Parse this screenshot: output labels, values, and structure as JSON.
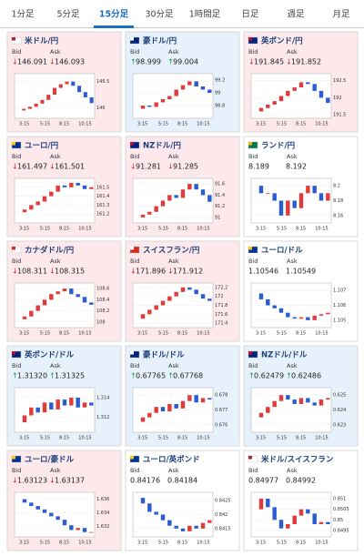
{
  "tabs": [
    "1分足",
    "5分足",
    "15分足",
    "30分足",
    "1時間足",
    "日足",
    "週足",
    "月足"
  ],
  "active_tab": 2,
  "labels": {
    "bid": "Bid",
    "ask": "Ask"
  },
  "chart_xlabels": [
    "3:15",
    "5:15",
    "8:15",
    "10:15"
  ],
  "cards": [
    {
      "name": "米ドル/円",
      "direction": "down",
      "bid": "146.091",
      "ask": "146.093",
      "ylim": [
        145.8,
        146.65
      ],
      "yticks": [
        146.5,
        146
      ],
      "values": [
        145.95,
        145.98,
        146.02,
        146.08,
        146.15,
        146.25,
        146.38,
        146.45,
        146.5,
        146.42,
        146.3,
        146.2,
        146.09
      ]
    },
    {
      "name": "豪ドル/円",
      "direction": "up",
      "bid": "98.999",
      "ask": "99.004",
      "ylim": [
        98.6,
        99.3
      ],
      "yticks": [
        99.2,
        99,
        98.8
      ],
      "values": [
        98.75,
        98.8,
        98.78,
        98.85,
        98.9,
        98.95,
        99.05,
        99.12,
        99.18,
        99.1,
        99.05,
        99.0
      ]
    },
    {
      "name": "英ポンド/円",
      "direction": "down",
      "bid": "191.845",
      "ask": "191.852",
      "ylim": [
        191.4,
        192.7
      ],
      "yticks": [
        192.5,
        192,
        191.5
      ],
      "values": [
        191.6,
        191.7,
        191.8,
        191.9,
        192.05,
        192.2,
        192.3,
        192.45,
        192.4,
        192.2,
        192.0,
        191.85
      ]
    },
    {
      "name": "ユーロ/円",
      "direction": "down",
      "bid": "161.497",
      "ask": "161.501",
      "ylim": [
        161.1,
        161.6
      ],
      "yticks": [
        161.5,
        161.4,
        161.3,
        161.2
      ],
      "values": [
        161.22,
        161.25,
        161.3,
        161.34,
        161.4,
        161.45,
        161.52,
        161.5,
        161.55,
        161.52,
        161.48,
        161.5
      ]
    },
    {
      "name": "NZドル/円",
      "direction": "down",
      "bid": "91.281",
      "ask": "91.285",
      "ylim": [
        90.9,
        91.7
      ],
      "yticks": [
        91.6,
        91.4,
        91.2,
        91
      ],
      "values": [
        91.0,
        91.05,
        91.1,
        91.2,
        91.3,
        91.4,
        91.35,
        91.5,
        91.6,
        91.5,
        91.4,
        91.28
      ]
    },
    {
      "name": "ランド/円",
      "direction": "none",
      "bid": "8.189",
      "ask": "8.192",
      "ylim": [
        8.15,
        8.21
      ],
      "yticks": [
        8.2,
        8.18,
        8.16
      ],
      "values": [
        8.2,
        8.19,
        8.19,
        8.18,
        8.16,
        8.18,
        8.17,
        8.19,
        8.2,
        8.19,
        8.18,
        8.19
      ]
    },
    {
      "name": "カナダドル/円",
      "direction": "down",
      "bid": "108.311",
      "ask": "108.315",
      "ylim": [
        107.9,
        108.7
      ],
      "yticks": [
        108.6,
        108.4,
        108.2,
        108
      ],
      "values": [
        108.05,
        108.1,
        108.2,
        108.3,
        108.4,
        108.5,
        108.55,
        108.6,
        108.5,
        108.45,
        108.35,
        108.31
      ]
    },
    {
      "name": "スイスフラン/円",
      "direction": "down",
      "bid": "171.896",
      "ask": "171.912",
      "ylim": [
        171.3,
        172.3
      ],
      "yticks": [
        172.2,
        172,
        171.8,
        171.6,
        171.4
      ],
      "values": [
        171.5,
        171.6,
        171.7,
        171.8,
        171.9,
        172.0,
        172.1,
        172.2,
        172.15,
        172.05,
        171.95,
        171.9
      ]
    },
    {
      "name": "ユーロ/ドル",
      "direction": "none",
      "bid": "1.10546",
      "ask": "1.10549",
      "ylim": [
        1.1045,
        1.1075
      ],
      "yticks": [
        1.107,
        1.106,
        1.105
      ],
      "values": [
        1.1068,
        1.1064,
        1.106,
        1.1058,
        1.1055,
        1.1052,
        1.1051,
        1.1052,
        1.105,
        1.1053,
        1.1054,
        1.1055
      ]
    },
    {
      "name": "英ポンド/ドル",
      "direction": "up",
      "bid": "1.31320",
      "ask": "1.31325",
      "ylim": [
        1.3105,
        1.315
      ],
      "yticks": [
        1.314,
        1.312
      ],
      "values": [
        1.3115,
        1.3122,
        1.313,
        1.3125,
        1.3135,
        1.3128,
        1.3138,
        1.3132,
        1.314,
        1.313,
        1.3135,
        1.3132
      ]
    },
    {
      "name": "豪ドル/ドル",
      "direction": "up",
      "bid": "0.67765",
      "ask": "0.67768",
      "ylim": [
        0.6755,
        0.6785
      ],
      "yticks": [
        0.678,
        0.677,
        0.676
      ],
      "values": [
        0.6762,
        0.6765,
        0.6768,
        0.6772,
        0.6769,
        0.6774,
        0.6771,
        0.6776,
        0.678,
        0.6775,
        0.6778,
        0.6777
      ]
    },
    {
      "name": "NZドル/ドル",
      "direction": "up",
      "bid": "0.62479",
      "ask": "0.62486",
      "ylim": [
        0.6225,
        0.6255
      ],
      "yticks": [
        0.625,
        0.624,
        0.623
      ],
      "values": [
        0.6235,
        0.6238,
        0.6242,
        0.6246,
        0.625,
        0.6247,
        0.6244,
        0.6248,
        0.6245,
        0.6243,
        0.6247,
        0.6248
      ]
    },
    {
      "name": "ユーロ/豪ドル",
      "direction": "down",
      "bid": "1.63123",
      "ask": "1.63137",
      "ylim": [
        1.6305,
        1.637
      ],
      "yticks": [
        1.636,
        1.634,
        1.632
      ],
      "values": [
        1.636,
        1.6355,
        1.635,
        1.6345,
        1.634,
        1.6335,
        1.633,
        1.6322,
        1.6315,
        1.6318,
        1.6312,
        1.6312
      ]
    },
    {
      "name": "ユーロ/英ポンド",
      "direction": "none",
      "bid": "0.84176",
      "ask": "0.84184",
      "ylim": [
        0.8412,
        0.8428
      ],
      "yticks": [
        0.8425,
        0.842,
        0.8415
      ],
      "values": [
        0.8426,
        0.8424,
        0.8421,
        0.842,
        0.8418,
        0.8416,
        0.8415,
        0.8414,
        0.8416,
        0.8415,
        0.8417,
        0.8418
      ]
    },
    {
      "name": "米ドル/スイスフラン",
      "direction": "none",
      "bid": "0.84977",
      "ask": "0.84992",
      "ylim": [
        0.8492,
        0.8513
      ],
      "yticks": [
        0.851,
        0.8505,
        0.85,
        0.8495
      ],
      "values": [
        0.8505,
        0.851,
        0.8506,
        0.85,
        0.8496,
        0.8498,
        0.8502,
        0.8505,
        0.8503,
        0.8498,
        0.8499,
        0.8498
      ]
    }
  ]
}
